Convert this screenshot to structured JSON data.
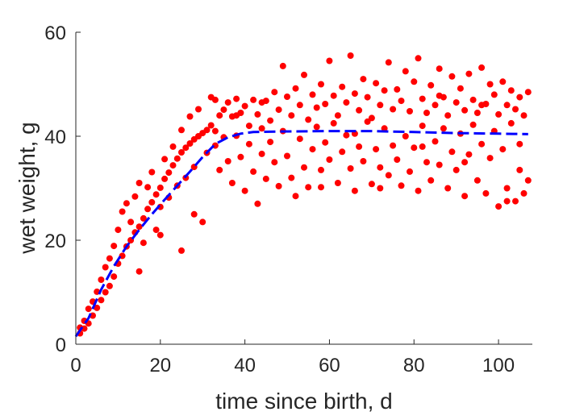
{
  "chart_data": {
    "type": "scatter",
    "title": "",
    "xlabel": "time since birth, d",
    "ylabel": "wet weight, g",
    "xlim": [
      0,
      108
    ],
    "ylim": [
      0,
      60
    ],
    "xticks": [
      0,
      20,
      40,
      60,
      80,
      100
    ],
    "yticks": [
      0,
      20,
      40,
      60
    ],
    "xtick_labels": [
      "0",
      "20",
      "40",
      "60",
      "80",
      "100"
    ],
    "ytick_labels": [
      "0",
      "20",
      "40",
      "60"
    ],
    "grid": false,
    "box": false,
    "series": [
      {
        "kind": "markers",
        "color": "#ff0000",
        "marker": "filled-circle",
        "description": "observed wet weight per individual over time",
        "points": [
          [
            1,
            2.1
          ],
          [
            1,
            3.2
          ],
          [
            2,
            3.0
          ],
          [
            2,
            4.5
          ],
          [
            3,
            4.0
          ],
          [
            3,
            6.8
          ],
          [
            4,
            5.5
          ],
          [
            4,
            8.2
          ],
          [
            5,
            7.0
          ],
          [
            5,
            10.1
          ],
          [
            6,
            8.5
          ],
          [
            6,
            12.4
          ],
          [
            7,
            10.0
          ],
          [
            7,
            14.8
          ],
          [
            8,
            11.2
          ],
          [
            8,
            16.5
          ],
          [
            9,
            13.0
          ],
          [
            9,
            18.9
          ],
          [
            10,
            15.5
          ],
          [
            10,
            22.0
          ],
          [
            11,
            17.0
          ],
          [
            11,
            25.5
          ],
          [
            12,
            18.8
          ],
          [
            12,
            27.1
          ],
          [
            13,
            20.0
          ],
          [
            13,
            23.5
          ],
          [
            14,
            21.5
          ],
          [
            14,
            28.4
          ],
          [
            15,
            22.6
          ],
          [
            15,
            31.0
          ],
          [
            16,
            24.2
          ],
          [
            16,
            19.5
          ],
          [
            17,
            26.0
          ],
          [
            17,
            30.2
          ],
          [
            18,
            27.3
          ],
          [
            18,
            33.1
          ],
          [
            19,
            28.8
          ],
          [
            19,
            22.0
          ],
          [
            20,
            30.1
          ],
          [
            20,
            26.4
          ],
          [
            21,
            31.8
          ],
          [
            21,
            35.6
          ],
          [
            22,
            33.0
          ],
          [
            22,
            28.2
          ],
          [
            23,
            34.4
          ],
          [
            23,
            38.0
          ],
          [
            24,
            35.7
          ],
          [
            24,
            30.5
          ],
          [
            25,
            36.9
          ],
          [
            25,
            41.2
          ],
          [
            26,
            37.8
          ],
          [
            26,
            32.0
          ],
          [
            27,
            38.6
          ],
          [
            27,
            43.8
          ],
          [
            28,
            39.4
          ],
          [
            28,
            34.1
          ],
          [
            29,
            40.0
          ],
          [
            29,
            45.2
          ],
          [
            30,
            40.6
          ],
          [
            30,
            23.5
          ],
          [
            31,
            41.2
          ],
          [
            31,
            36.8
          ],
          [
            32,
            42.1
          ],
          [
            32,
            47.5
          ],
          [
            33,
            41.0
          ],
          [
            33,
            38.2
          ],
          [
            34,
            44.0
          ],
          [
            34,
            33.5
          ],
          [
            35,
            45.1
          ],
          [
            35,
            39.8
          ],
          [
            36,
            46.5
          ],
          [
            36,
            35.2
          ],
          [
            37,
            43.8
          ],
          [
            37,
            31.0
          ],
          [
            38,
            47.2
          ],
          [
            38,
            40.1
          ],
          [
            39,
            44.5
          ],
          [
            39,
            36.0
          ],
          [
            40,
            45.8
          ],
          [
            40,
            29.5
          ],
          [
            41,
            42.0
          ],
          [
            41,
            38.5
          ],
          [
            42,
            47.0
          ],
          [
            42,
            33.2
          ],
          [
            43,
            44.2
          ],
          [
            43,
            27.0
          ],
          [
            44,
            41.5
          ],
          [
            44,
            36.6
          ],
          [
            45,
            46.8
          ],
          [
            45,
            31.8
          ],
          [
            46,
            43.0
          ],
          [
            46,
            38.9
          ],
          [
            47,
            48.5
          ],
          [
            47,
            35.0
          ],
          [
            48,
            45.1
          ],
          [
            48,
            30.4
          ],
          [
            49,
            53.5
          ],
          [
            49,
            41.0
          ],
          [
            50,
            47.6
          ],
          [
            50,
            36.2
          ],
          [
            51,
            44.0
          ],
          [
            51,
            32.0
          ],
          [
            52,
            49.2
          ],
          [
            52,
            28.5
          ],
          [
            53,
            46.0
          ],
          [
            53,
            39.5
          ],
          [
            54,
            51.8
          ],
          [
            54,
            34.0
          ],
          [
            55,
            43.2
          ],
          [
            55,
            30.2
          ],
          [
            56,
            48.0
          ],
          [
            56,
            37.5
          ],
          [
            57,
            45.5
          ],
          [
            57,
            41.8
          ],
          [
            58,
            50.0
          ],
          [
            58,
            33.5
          ],
          [
            59,
            46.2
          ],
          [
            59,
            38.8
          ],
          [
            60,
            54.5
          ],
          [
            60,
            35.5
          ],
          [
            61,
            47.8
          ],
          [
            61,
            42.5
          ],
          [
            62,
            44.0
          ],
          [
            62,
            31.0
          ],
          [
            63,
            49.5
          ],
          [
            63,
            37.0
          ],
          [
            64,
            46.5
          ],
          [
            64,
            40.2
          ],
          [
            65,
            55.5
          ],
          [
            65,
            33.8
          ],
          [
            66,
            48.2
          ],
          [
            66,
            29.5
          ],
          [
            67,
            45.0
          ],
          [
            67,
            38.0
          ],
          [
            68,
            51.0
          ],
          [
            68,
            35.2
          ],
          [
            69,
            47.5
          ],
          [
            69,
            42.8
          ],
          [
            70,
            43.5
          ],
          [
            70,
            30.8
          ],
          [
            71,
            50.2
          ],
          [
            71,
            37.5
          ],
          [
            72,
            46.0
          ],
          [
            72,
            34.0
          ],
          [
            73,
            48.8
          ],
          [
            73,
            41.5
          ],
          [
            74,
            54.2
          ],
          [
            74,
            32.5
          ],
          [
            75,
            45.2
          ],
          [
            75,
            38.2
          ],
          [
            76,
            49.0
          ],
          [
            76,
            35.5
          ],
          [
            77,
            46.8
          ],
          [
            77,
            30.5
          ],
          [
            78,
            52.5
          ],
          [
            78,
            40.0
          ],
          [
            79,
            44.8
          ],
          [
            79,
            33.2
          ],
          [
            80,
            50.5
          ],
          [
            80,
            37.8
          ],
          [
            81,
            55.0
          ],
          [
            81,
            29.5
          ],
          [
            82,
            47.2
          ],
          [
            82,
            42.0
          ],
          [
            83,
            44.5
          ],
          [
            83,
            35.0
          ],
          [
            84,
            49.8
          ],
          [
            84,
            31.5
          ],
          [
            85,
            46.0
          ],
          [
            85,
            39.0
          ],
          [
            86,
            53.0
          ],
          [
            86,
            34.5
          ],
          [
            87,
            47.5
          ],
          [
            87,
            41.5
          ],
          [
            88,
            44.0
          ],
          [
            88,
            30.0
          ],
          [
            89,
            51.5
          ],
          [
            89,
            37.0
          ],
          [
            90,
            46.5
          ],
          [
            90,
            33.5
          ],
          [
            91,
            49.2
          ],
          [
            91,
            40.5
          ],
          [
            92,
            45.0
          ],
          [
            92,
            28.5
          ],
          [
            93,
            52.0
          ],
          [
            93,
            36.5
          ],
          [
            94,
            47.0
          ],
          [
            94,
            42.2
          ],
          [
            95,
            44.5
          ],
          [
            95,
            31.5
          ],
          [
            96,
            53.2
          ],
          [
            96,
            38.5
          ],
          [
            97,
            46.2
          ],
          [
            97,
            29.0
          ],
          [
            98,
            50.0
          ],
          [
            98,
            35.8
          ],
          [
            99,
            48.0
          ],
          [
            99,
            41.0
          ],
          [
            100,
            44.2
          ],
          [
            100,
            26.5
          ],
          [
            101,
            50.5
          ],
          [
            101,
            37.5
          ],
          [
            102,
            46.0
          ],
          [
            102,
            30.0
          ],
          [
            103,
            48.8
          ],
          [
            103,
            42.5
          ],
          [
            104,
            45.2
          ],
          [
            104,
            27.5
          ],
          [
            105,
            47.5
          ],
          [
            105,
            33.5
          ],
          [
            106,
            44.0
          ],
          [
            106,
            29.0
          ],
          [
            107,
            48.5
          ],
          [
            107,
            31.5
          ],
          [
            72,
            30.0
          ],
          [
            58,
            30.2
          ],
          [
            66,
            40.5
          ],
          [
            82,
            38.0
          ],
          [
            92,
            35.0
          ],
          [
            38,
            44.0
          ],
          [
            28,
            25.0
          ],
          [
            25,
            18.0
          ],
          [
            15,
            14.0
          ],
          [
            20,
            21.0
          ],
          [
            33,
            47.0
          ],
          [
            44,
            46.5
          ],
          [
            86,
            47.8
          ],
          [
            96,
            46.0
          ],
          [
            102,
            27.5
          ],
          [
            105,
            38.5
          ]
        ]
      },
      {
        "kind": "line",
        "color": "#0000ff",
        "style": "dashed",
        "description": "fitted growth curve",
        "points": [
          [
            0,
            1.5
          ],
          [
            3,
            5.0
          ],
          [
            6,
            10.5
          ],
          [
            9,
            15.0
          ],
          [
            12,
            18.8
          ],
          [
            15,
            22.0
          ],
          [
            18,
            25.0
          ],
          [
            21,
            27.8
          ],
          [
            24,
            30.5
          ],
          [
            27,
            33.2
          ],
          [
            30,
            36.0
          ],
          [
            33,
            38.5
          ],
          [
            36,
            39.8
          ],
          [
            39,
            40.5
          ],
          [
            42,
            40.8
          ],
          [
            48,
            40.9
          ],
          [
            60,
            41.0
          ],
          [
            70,
            41.0
          ],
          [
            80,
            40.8
          ],
          [
            90,
            40.6
          ],
          [
            100,
            40.5
          ],
          [
            107,
            40.4
          ]
        ]
      }
    ]
  }
}
